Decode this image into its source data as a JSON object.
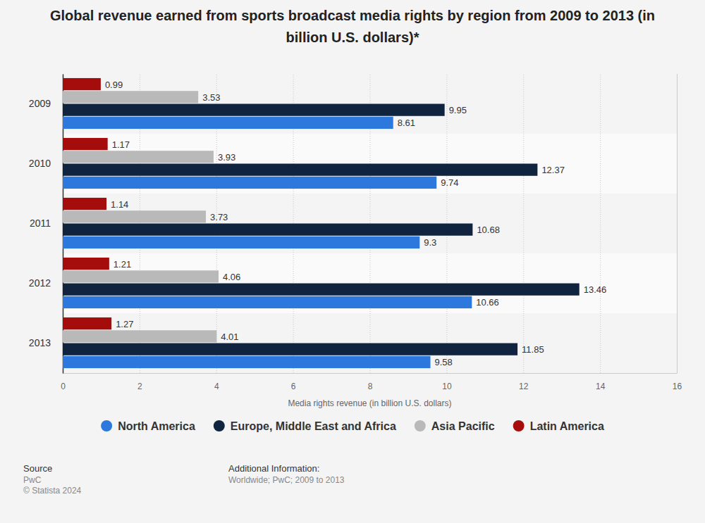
{
  "chart_data": {
    "type": "bar",
    "orientation": "horizontal",
    "title": "Global revenue earned from sports broadcast media rights by region from 2009 to 2013 (in billion U.S. dollars)*",
    "x_label": "Media rights revenue (in billion U.S. dollars)",
    "categories": [
      "2009",
      "2010",
      "2011",
      "2012",
      "2013"
    ],
    "series": [
      {
        "name": "North America",
        "color": "#2c78dc",
        "values": [
          8.61,
          9.74,
          9.3,
          10.66,
          9.58
        ]
      },
      {
        "name": "Europe, Middle East and Africa",
        "color": "#10243f",
        "values": [
          9.95,
          12.37,
          10.68,
          13.46,
          11.85
        ]
      },
      {
        "name": "Asia Pacific",
        "color": "#b9b9b9",
        "values": [
          3.53,
          3.93,
          3.73,
          4.06,
          4.01
        ]
      },
      {
        "name": "Latin America",
        "color": "#a50d0d",
        "values": [
          0.99,
          1.17,
          1.14,
          1.21,
          1.27
        ]
      }
    ],
    "xlim": [
      0,
      16
    ],
    "xticks": [
      0,
      2,
      4,
      6,
      8,
      10,
      12,
      14,
      16
    ],
    "grid": true,
    "data_labels": true,
    "legend": "bottom",
    "annotations": [
      "Source",
      "PwC",
      "© Statista 2024",
      "Additional Information:",
      "Worldwide; PwC; 2009 to 2013"
    ]
  }
}
